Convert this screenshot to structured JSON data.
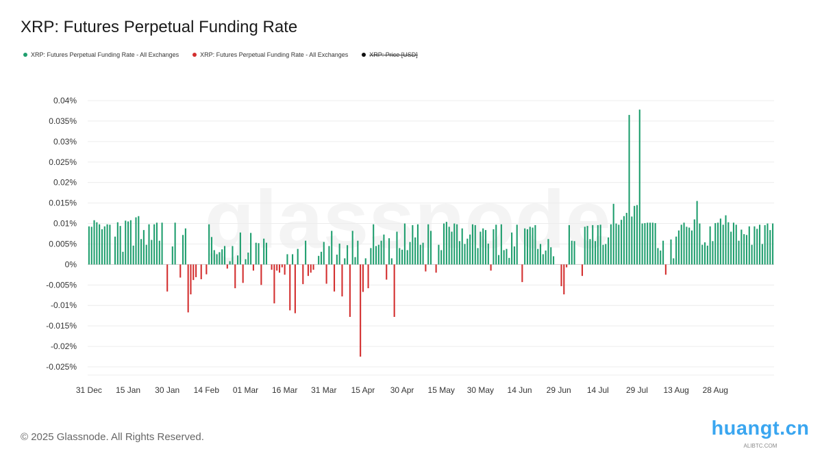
{
  "title": "XRP: Futures Perpetual Funding Rate",
  "legend": [
    {
      "label": "XRP: Futures Perpetual Funding Rate - All Exchanges",
      "color": "#1f9e6e",
      "struck": false
    },
    {
      "label": "XRP: Futures Perpetual Funding Rate - All Exchanges",
      "color": "#d32f2f",
      "struck": false
    },
    {
      "label": "XRP: Price [USD]",
      "color": "#111111",
      "struck": true
    }
  ],
  "footer": "© 2025 Glassnode. All Rights Reserved.",
  "watermark": "glassnode",
  "brand": {
    "text": "huangt.cn",
    "sub": "ALIBTC.COM"
  },
  "colors": {
    "positive": "#1f9e6e",
    "negative": "#d32f2f",
    "grid": "#ececec",
    "zero": "#cfcfcf"
  },
  "chart_data": {
    "type": "bar",
    "title": "XRP: Futures Perpetual Funding Rate",
    "xlabel": "",
    "ylabel": "",
    "ylim": [
      -0.027,
      0.042
    ],
    "y_ticks": [
      0.04,
      0.035,
      0.03,
      0.025,
      0.02,
      0.015,
      0.01,
      0.005,
      0,
      -0.005,
      -0.01,
      -0.015,
      -0.02,
      -0.025
    ],
    "y_tick_labels": [
      "0.04%",
      "0.035%",
      "0.03%",
      "0.025%",
      "0.02%",
      "0.015%",
      "0.01%",
      "0.005%",
      "0%",
      "-0.005%",
      "-0.01%",
      "-0.015%",
      "-0.02%",
      "-0.025%"
    ],
    "x_ticks": [
      {
        "label": "31 Dec",
        "index": 0
      },
      {
        "label": "15 Jan",
        "index": 15
      },
      {
        "label": "30 Jan",
        "index": 30
      },
      {
        "label": "14 Feb",
        "index": 45
      },
      {
        "label": "01 Mar",
        "index": 60
      },
      {
        "label": "16 Mar",
        "index": 75
      },
      {
        "label": "31 Mar",
        "index": 90
      },
      {
        "label": "15 Apr",
        "index": 105
      },
      {
        "label": "30 Apr",
        "index": 120
      },
      {
        "label": "15 May",
        "index": 135
      },
      {
        "label": "30 May",
        "index": 150
      },
      {
        "label": "14 Jun",
        "index": 165
      },
      {
        "label": "29 Jun",
        "index": 180
      },
      {
        "label": "14 Jul",
        "index": 195
      },
      {
        "label": "29 Jul",
        "index": 210
      },
      {
        "label": "13 Aug",
        "index": 225
      },
      {
        "label": "28 Aug",
        "index": 240
      }
    ],
    "start_date": "31 Dec",
    "grid": true,
    "legend_position": "top-left",
    "series": [
      {
        "name": "XRP: Futures Perpetual Funding Rate - All Exchanges",
        "values": [
          0.0093,
          0.0092,
          0.0108,
          0.0103,
          0.0098,
          0.0086,
          0.0093,
          0.0098,
          0.0097,
          0.0,
          0.0068,
          0.0103,
          0.0094,
          0.0031,
          0.0107,
          0.0105,
          0.0108,
          0.0046,
          0.0115,
          0.0118,
          0.0062,
          0.0084,
          0.0048,
          0.0098,
          0.006,
          0.0098,
          0.0102,
          0.0058,
          0.0102,
          0.0,
          -0.0066,
          0.0,
          0.0044,
          0.0102,
          0.0,
          -0.0032,
          0.0072,
          0.0088,
          -0.0117,
          -0.0073,
          -0.0038,
          -0.0031,
          0.0,
          -0.0036,
          0.0,
          -0.0024,
          0.0098,
          0.0067,
          0.0035,
          0.0025,
          0.003,
          0.0037,
          0.0045,
          -0.001,
          0.0008,
          0.0045,
          -0.0058,
          0.0022,
          0.0078,
          -0.0045,
          0.0013,
          0.0029,
          0.0077,
          -0.0015,
          0.0053,
          0.0052,
          -0.005,
          0.0063,
          0.0053,
          0.0,
          -0.0013,
          -0.0095,
          -0.0015,
          -0.002,
          -0.0007,
          -0.0025,
          0.0025,
          -0.0112,
          0.0025,
          -0.0119,
          0.0038,
          0.0,
          -0.0048,
          0.0058,
          -0.0028,
          -0.002,
          -0.0013,
          0.0,
          0.0021,
          0.0031,
          0.0055,
          -0.0047,
          0.0045,
          0.0082,
          -0.0066,
          0.0024,
          0.0051,
          -0.0078,
          0.0015,
          0.0047,
          -0.0128,
          0.0082,
          0.0018,
          0.0058,
          -0.0225,
          -0.0067,
          0.0015,
          -0.0058,
          0.004,
          0.0098,
          0.0045,
          0.0048,
          0.0058,
          0.0073,
          -0.0037,
          0.0064,
          0.0015,
          -0.0128,
          0.008,
          0.004,
          0.0036,
          0.01,
          0.0035,
          0.0055,
          0.0096,
          0.0066,
          0.0098,
          0.0048,
          0.0053,
          -0.0017,
          0.0098,
          0.0082,
          0.0,
          -0.002,
          0.0048,
          0.0035,
          0.01,
          0.0104,
          0.0092,
          0.008,
          0.01,
          0.0098,
          0.0057,
          0.0088,
          0.005,
          0.0063,
          0.0073,
          0.0098,
          0.0096,
          0.004,
          0.008,
          0.0088,
          0.0084,
          0.0051,
          -0.0015,
          0.0086,
          0.0097,
          0.0023,
          0.0098,
          0.0035,
          0.0038,
          0.0016,
          0.0078,
          0.0044,
          0.0097,
          0.0,
          -0.0043,
          0.0088,
          0.0086,
          0.0092,
          0.009,
          0.0096,
          0.0038,
          0.005,
          0.0025,
          0.0034,
          0.0062,
          0.0042,
          0.002,
          0.0,
          0.0,
          -0.0053,
          -0.0073,
          -0.0007,
          0.0096,
          0.0058,
          0.0057,
          0.0,
          0.0,
          -0.0028,
          0.0092,
          0.0094,
          0.0062,
          0.0096,
          0.0057,
          0.0096,
          0.0097,
          0.0048,
          0.005,
          0.0066,
          0.0098,
          0.0148,
          0.01,
          0.0097,
          0.0109,
          0.0118,
          0.0126,
          0.0365,
          0.0117,
          0.0143,
          0.0145,
          0.0378,
          0.01,
          0.0101,
          0.0102,
          0.0102,
          0.0102,
          0.0101,
          0.004,
          0.0034,
          0.0058,
          -0.0025,
          0.0,
          0.0061,
          0.0015,
          0.0068,
          0.0083,
          0.0097,
          0.0102,
          0.0092,
          0.009,
          0.0083,
          0.011,
          0.0155,
          0.01,
          0.0048,
          0.0054,
          0.0046,
          0.0093,
          0.0057,
          0.0101,
          0.0102,
          0.0112,
          0.0097,
          0.012,
          0.0103,
          0.008,
          0.0102,
          0.0097,
          0.0058,
          0.0085,
          0.0074,
          0.0072,
          0.0093,
          0.0048,
          0.0093,
          0.0087,
          0.0097,
          0.005,
          0.0096,
          0.01,
          0.0084,
          0.01
        ]
      }
    ]
  }
}
